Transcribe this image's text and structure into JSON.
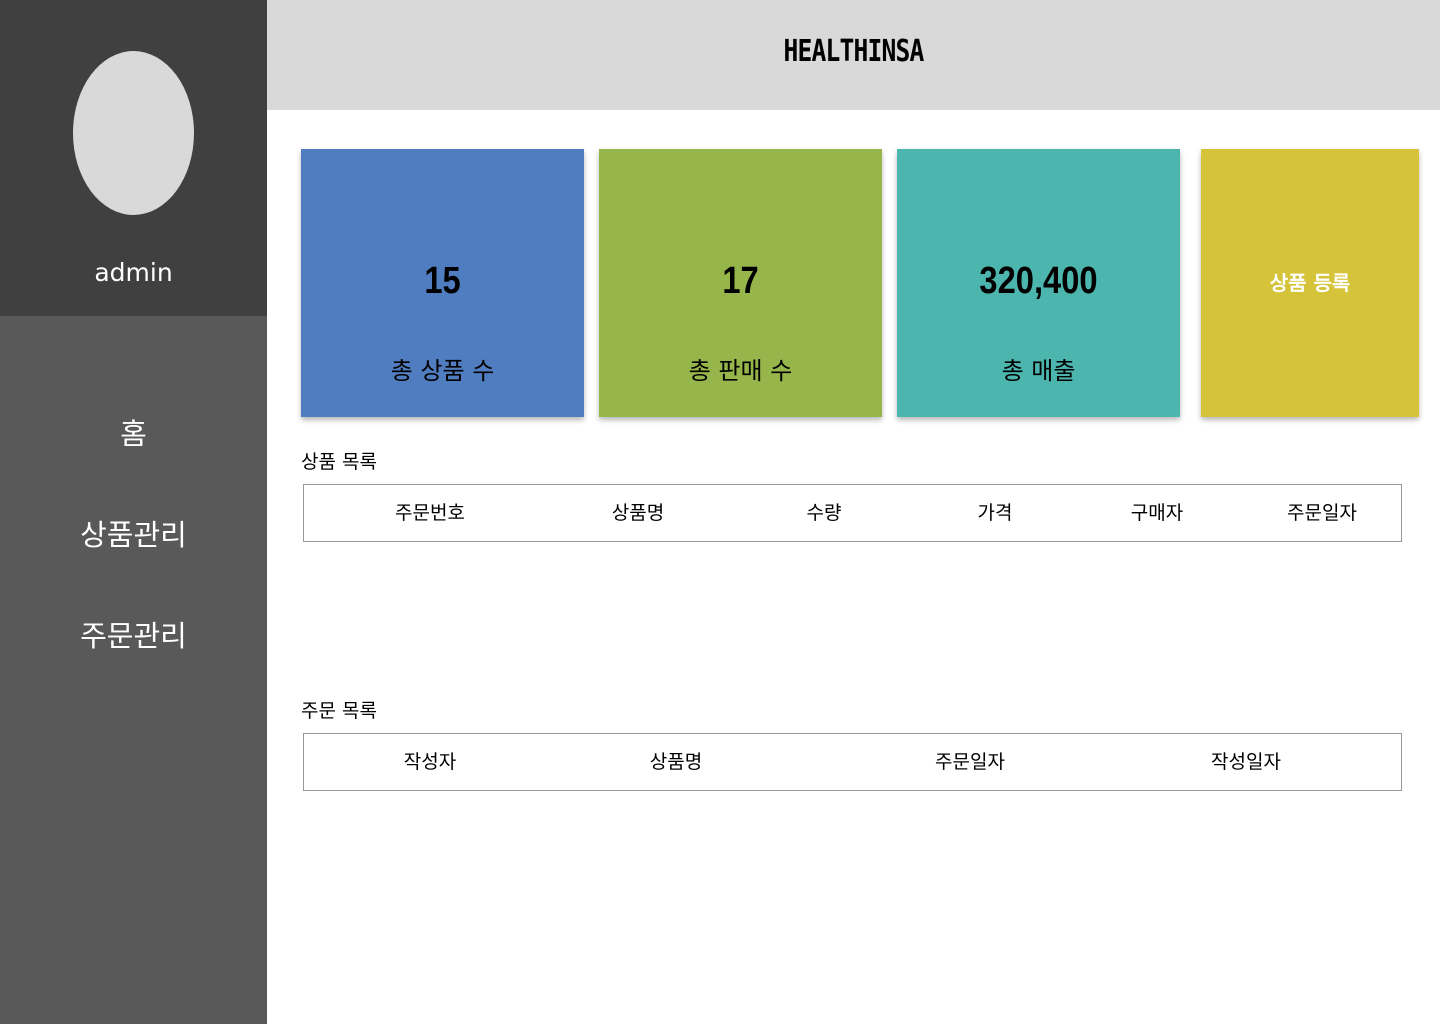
{
  "sidebar": {
    "username": "admin",
    "nav": [
      "홈",
      "상품관리",
      "주문관리"
    ]
  },
  "header": {
    "brand": "HEALTHINSA"
  },
  "stats": [
    {
      "value": "15",
      "label": "총 상품 수",
      "color": "#507dc0"
    },
    {
      "value": "17",
      "label": "총 판매 수",
      "color": "#96b54a"
    },
    {
      "value": "320,400",
      "label": "총 매출",
      "color": "#4bb5ae"
    }
  ],
  "register": {
    "label": "상품 등록",
    "color": "#d5c43a"
  },
  "product_list": {
    "title": "상품 목록",
    "columns": [
      "주문번호",
      "상품명",
      "수량",
      "가격",
      "구매자",
      "주문일자"
    ]
  },
  "order_list": {
    "title": "주문 목록",
    "columns": [
      "작성자",
      "상품명",
      "주문일자",
      "작성일자"
    ]
  }
}
